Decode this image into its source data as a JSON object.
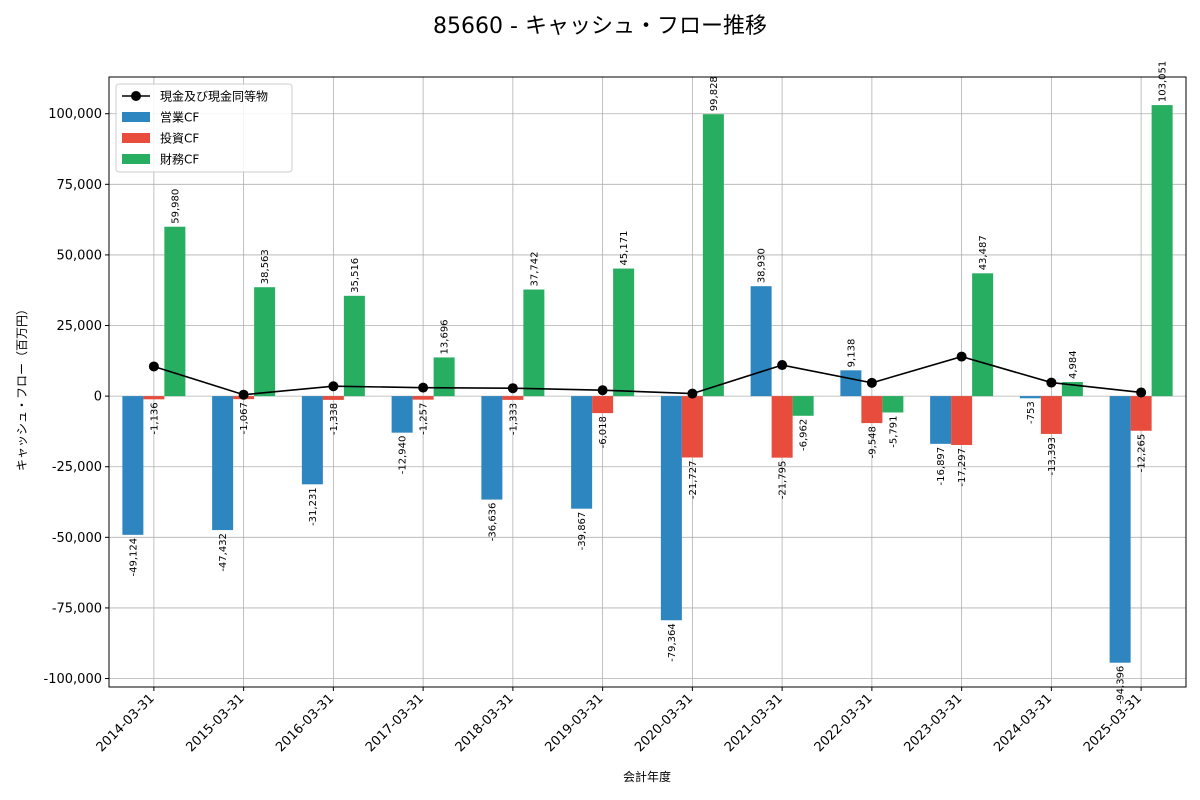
{
  "chart_data": {
    "type": "bar",
    "title": "85660 - キャッシュ・フロー推移",
    "xlabel": "会計年度",
    "ylabel": "キャッシュ・フロー（百万円）",
    "categories": [
      "2014-03-31",
      "2015-03-31",
      "2016-03-31",
      "2017-03-31",
      "2018-03-31",
      "2019-03-31",
      "2020-03-31",
      "2021-03-31",
      "2022-03-31",
      "2023-03-31",
      "2024-03-31",
      "2025-03-31"
    ],
    "ylim": [
      -103000,
      113000
    ],
    "yticks": [
      -100000,
      -75000,
      -50000,
      -25000,
      0,
      25000,
      50000,
      75000,
      100000
    ],
    "ytick_labels": [
      "-100,000",
      "-75,000",
      "-50,000",
      "-25,000",
      "0",
      "25,000",
      "50,000",
      "75,000",
      "100,000"
    ],
    "grid": true,
    "legend_position": "top-left",
    "series": [
      {
        "name": "営業CF",
        "kind": "bar",
        "color": "#2e86c1",
        "values": [
          -49124,
          -47432,
          -31231,
          -12940,
          -36636,
          -39867,
          -79364,
          38930,
          9138,
          -16897,
          -753,
          -94396
        ],
        "labels": [
          "-49,124",
          "-47,432",
          "-31,231",
          "-12,940",
          "-36,636",
          "-39,867",
          "-79,364",
          "38,930",
          "9,138",
          "-16,897",
          "-753",
          "-94,396"
        ]
      },
      {
        "name": "投資CF",
        "kind": "bar",
        "color": "#e74c3c",
        "values": [
          -1136,
          -1067,
          -1338,
          -1257,
          -1333,
          -6018,
          -21727,
          -21795,
          -9548,
          -17297,
          -13393,
          -12265
        ],
        "labels": [
          "-1,136",
          "-1,067",
          "-1,338",
          "-1,257",
          "-1,333",
          "-6,018",
          "-21,727",
          "-21,795",
          "-9,548",
          "-17,297",
          "-13,393",
          "-12,265"
        ]
      },
      {
        "name": "財務CF",
        "kind": "bar",
        "color": "#27ae60",
        "values": [
          59980,
          38563,
          35516,
          13696,
          37742,
          45171,
          99828,
          -6962,
          -5791,
          43487,
          4984,
          103051
        ],
        "labels": [
          "59,980",
          "38,563",
          "35,516",
          "13,696",
          "37,742",
          "45,171",
          "99,828",
          "-6,962",
          "-5,791",
          "43,487",
          "4,984",
          "103,051"
        ]
      },
      {
        "name": "現金及び現金同等物",
        "kind": "line",
        "color": "#000000",
        "values": [
          10500,
          500,
          3500,
          3000,
          2800,
          2100,
          900,
          11000,
          4700,
          14000,
          4800,
          1300
        ]
      }
    ]
  }
}
